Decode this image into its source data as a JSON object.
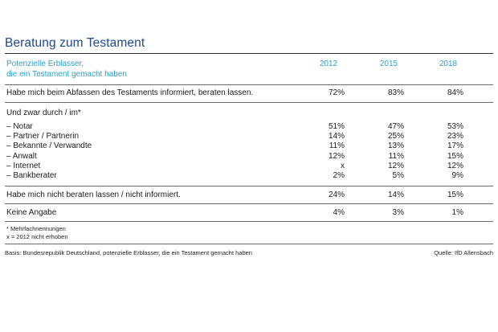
{
  "chart_data": {
    "type": "table",
    "title": "Beratung zum Testament",
    "header": {
      "label_lines": [
        "Potenzielle Erblasser,",
        "die ein Testament gemacht haben"
      ],
      "years": [
        "2012",
        "2015",
        "2018"
      ]
    },
    "rows": [
      {
        "label": "Habe mich beim Abfassen des Testaments informiert, beraten lassen.",
        "values": [
          "72%",
          "83%",
          "84%"
        ]
      },
      {
        "label": "Und zwar durch / im*",
        "values": []
      },
      {
        "label": "– Notar",
        "values": [
          "51%",
          "47%",
          "53%"
        ]
      },
      {
        "label": "– Partner / Partnerin",
        "values": [
          "14%",
          "25%",
          "23%"
        ]
      },
      {
        "label": "– Bekannte / Verwandte",
        "values": [
          "11%",
          "13%",
          "17%"
        ]
      },
      {
        "label": "– Anwalt",
        "values": [
          "12%",
          "11%",
          "15%"
        ]
      },
      {
        "label": "– Internet",
        "values": [
          "x",
          "12%",
          "12%"
        ]
      },
      {
        "label": "– Bankberater",
        "values": [
          "2%",
          "5%",
          "9%"
        ]
      },
      {
        "label": "Habe mich nicht beraten lassen / nicht informiert.",
        "values": [
          "24%",
          "14%",
          "15%"
        ]
      },
      {
        "label": "Keine Angabe",
        "values": [
          "4%",
          "3%",
          "1%"
        ]
      }
    ],
    "notes": [
      "* Mehrfachnennungen",
      "x = 2012 nicht erhoben"
    ],
    "basis": "Basis: Bundesrepublik Deutschland, potenzielle Erblasser, die ein Testament gemacht haben",
    "source": "Quelle: IfD Allensbach"
  }
}
